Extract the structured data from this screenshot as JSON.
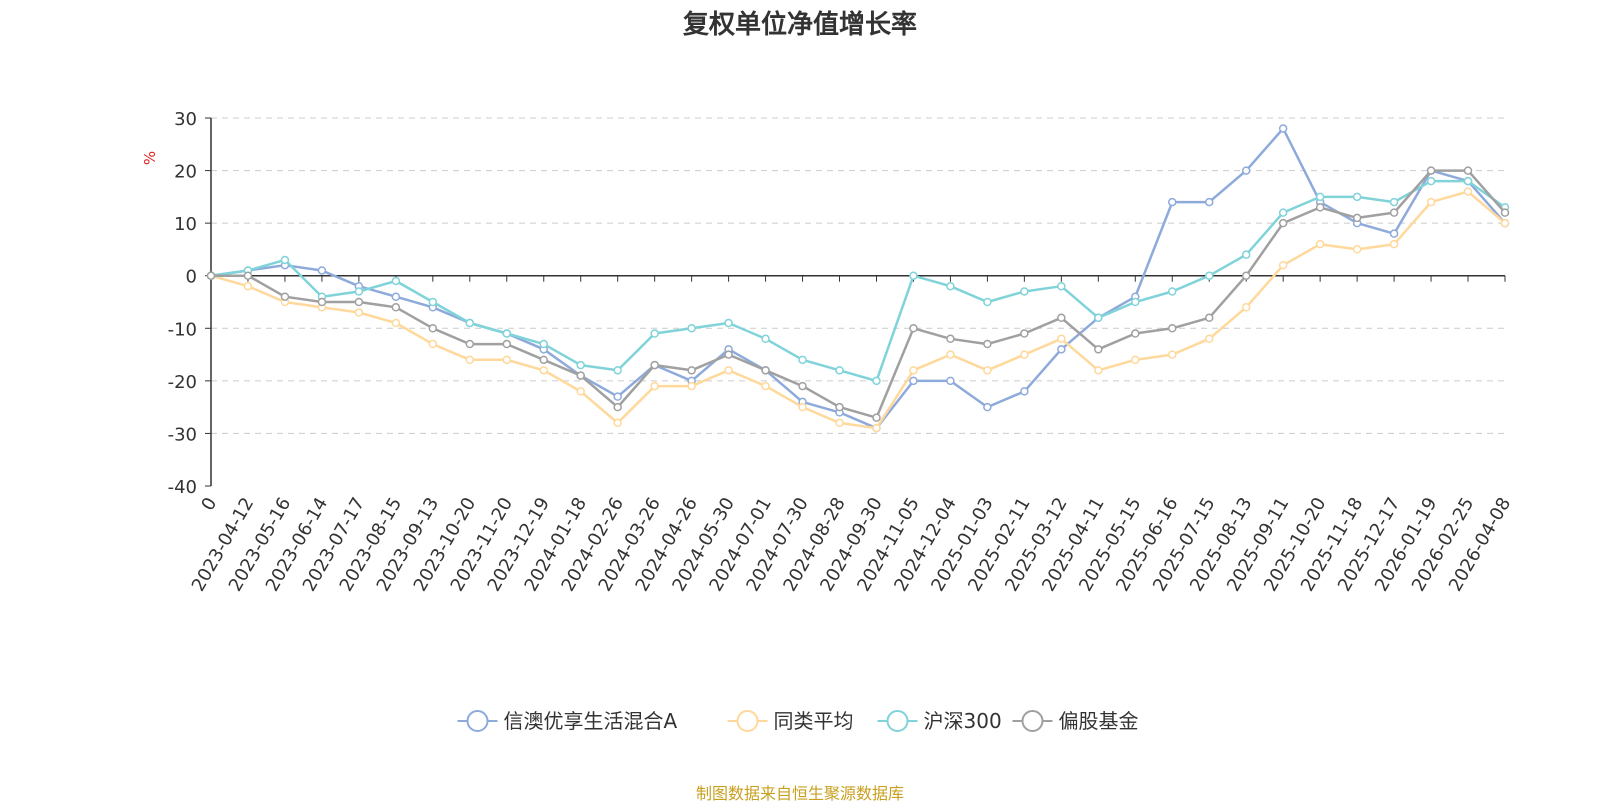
{
  "chart_data": {
    "type": "line",
    "title": "复权单位净值增长率",
    "ylabel": "%",
    "xlabel": "",
    "ylim": [
      -40,
      30
    ],
    "yticks": [
      30,
      20,
      10,
      0,
      -10,
      -20,
      -30,
      -40
    ],
    "grid": true,
    "legend_position": "bottom-center",
    "x": [
      "0",
      "2023-04-12",
      "2023-05-16",
      "2023-06-14",
      "2023-07-17",
      "2023-08-15",
      "2023-09-13",
      "2023-10-20",
      "2023-11-20",
      "2023-12-19",
      "2024-01-18",
      "2024-02-26",
      "2024-03-26",
      "2024-04-26",
      "2024-05-30",
      "2024-07-01",
      "2024-07-30",
      "2024-08-28",
      "2024-09-30",
      "2024-11-05",
      "2024-12-04",
      "2025-01-03",
      "2025-02-11",
      "2025-03-12",
      "2025-04-11",
      "2025-05-15",
      "2025-06-16",
      "2025-07-15",
      "2025-08-13",
      "2025-09-11",
      "2025-10-20",
      "2025-11-18",
      "2025-12-17",
      "2026-01-19",
      "2026-02-25",
      "2026-04-08"
    ],
    "series": [
      {
        "name": "信澳优享生活混合A",
        "color": "#8eaadb",
        "values": [
          0,
          1,
          2,
          1,
          -2,
          -4,
          -6,
          -9,
          -11,
          -14,
          -19,
          -23,
          -17,
          -20,
          -14,
          -18,
          -24,
          -26,
          -29,
          -20,
          -20,
          -25,
          -22,
          -14,
          -8,
          -4,
          14,
          14,
          20,
          28,
          14,
          10,
          8,
          20,
          18,
          10
        ]
      },
      {
        "name": "同类平均",
        "color": "#ffd89b",
        "values": [
          0,
          -2,
          -5,
          -6,
          -7,
          -9,
          -13,
          -16,
          -16,
          -18,
          -22,
          -28,
          -21,
          -21,
          -18,
          -21,
          -25,
          -28,
          -29,
          -18,
          -15,
          -18,
          -15,
          -12,
          -18,
          -16,
          -15,
          -12,
          -6,
          2,
          6,
          5,
          6,
          14,
          16,
          10
        ]
      },
      {
        "name": "沪深300",
        "color": "#7fd3d9",
        "values": [
          0,
          1,
          3,
          -4,
          -3,
          -1,
          -5,
          -9,
          -11,
          -13,
          -17,
          -18,
          -11,
          -10,
          -9,
          -12,
          -16,
          -18,
          -20,
          0,
          -2,
          -5,
          -3,
          -2,
          -8,
          -5,
          -3,
          0,
          4,
          12,
          15,
          15,
          14,
          18,
          18,
          13
        ]
      },
      {
        "name": "偏股基金",
        "color": "#a0a0a0",
        "values": [
          0,
          0,
          -4,
          -5,
          -5,
          -6,
          -10,
          -13,
          -13,
          -16,
          -19,
          -25,
          -17,
          -18,
          -15,
          -18,
          -21,
          -25,
          -27,
          -10,
          -12,
          -13,
          -11,
          -8,
          -14,
          -11,
          -10,
          -8,
          0,
          10,
          13,
          11,
          12,
          20,
          20,
          12
        ]
      }
    ]
  },
  "source_note": "制图数据来自恒生聚源数据库"
}
